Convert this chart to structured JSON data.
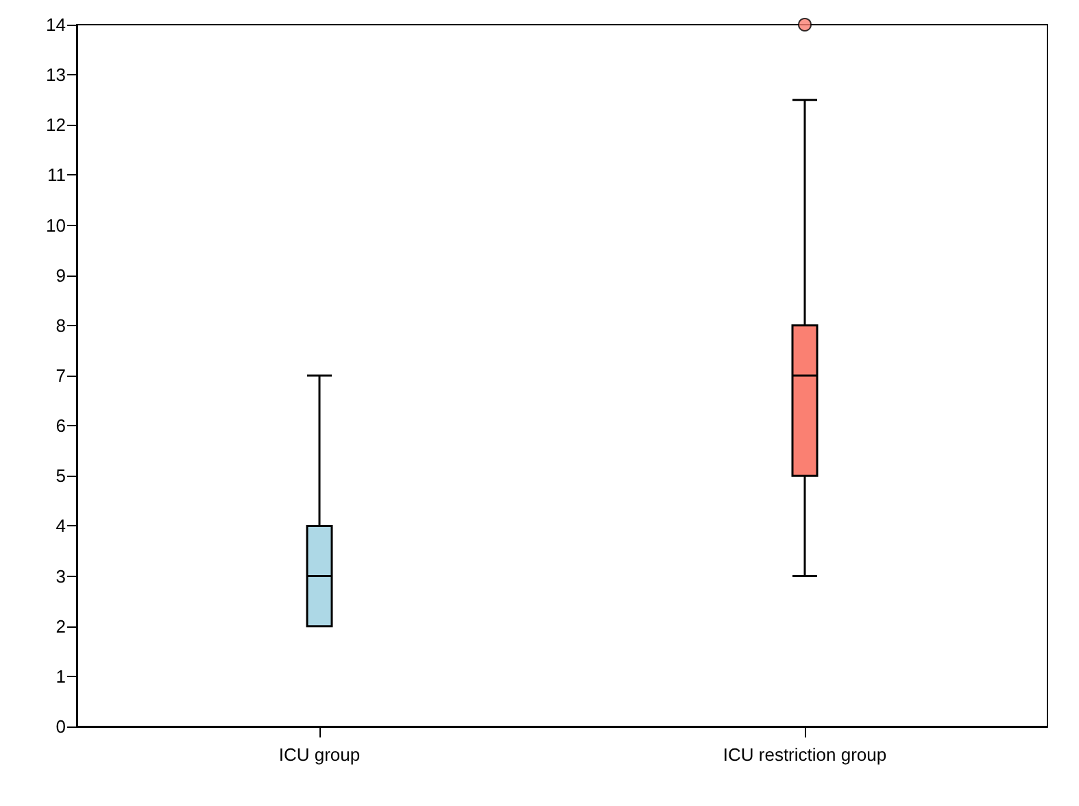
{
  "chart_data": {
    "type": "box",
    "categories": [
      "ICU group",
      "ICU restriction group"
    ],
    "boxes": [
      {
        "low": 2,
        "q1": 2,
        "median": 3,
        "q3": 4,
        "high": 7
      },
      {
        "low": 3,
        "q1": 5,
        "median": 7,
        "q3": 8,
        "high": 12.5,
        "outliers": [
          14
        ]
      }
    ],
    "colors": [
      "#add8e6",
      "#fa8072"
    ],
    "ylim": [
      0,
      14
    ],
    "yticks": [
      0,
      1,
      2,
      3,
      4,
      5,
      6,
      7,
      8,
      9,
      10,
      11,
      12,
      13,
      14
    ],
    "grid": false
  }
}
